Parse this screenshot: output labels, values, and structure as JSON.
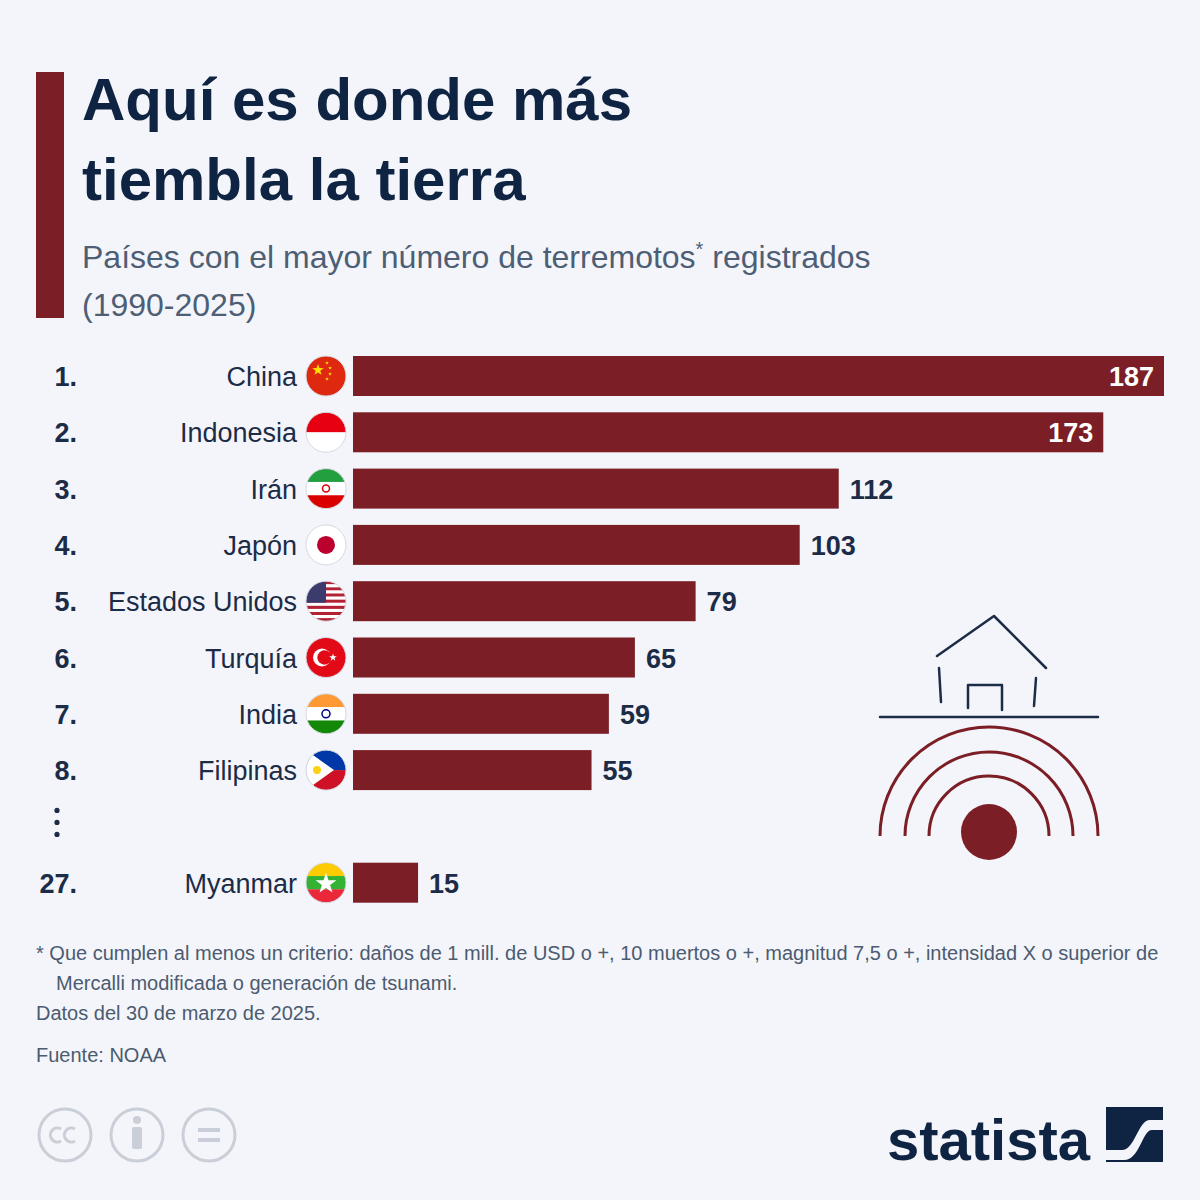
{
  "chart_data": {
    "type": "bar",
    "orientation": "horizontal",
    "title": "Aquí es donde más tiembla la tierra",
    "subtitle": "Países con el mayor número de terremotos* registrados (1990-2025)",
    "ranks": [
      "1.",
      "2.",
      "3.",
      "4.",
      "5.",
      "6.",
      "7.",
      "8.",
      "27."
    ],
    "categories": [
      "China",
      "Indonesia",
      "Irán",
      "Japón",
      "Estados Unidos",
      "Turquía",
      "India",
      "Filipinas",
      "Myanmar"
    ],
    "values": [
      187,
      173,
      112,
      103,
      79,
      65,
      59,
      55,
      15
    ],
    "color": "#7b1e25",
    "xlim": [
      0,
      187
    ],
    "tick_labels": false,
    "grid": false,
    "data_labels": true,
    "notes": [
      "* Que cumplen al menos un criterio: daños de 1 mill. de USD o +, 10 muertos o +, magnitud 7,5 o +, intensidad X o superior de Mercalli modificada o generación de tsunami.",
      "Datos del 30 de marzo de 2025."
    ],
    "source": "Fuente: NOAA",
    "brand": "statista"
  }
}
